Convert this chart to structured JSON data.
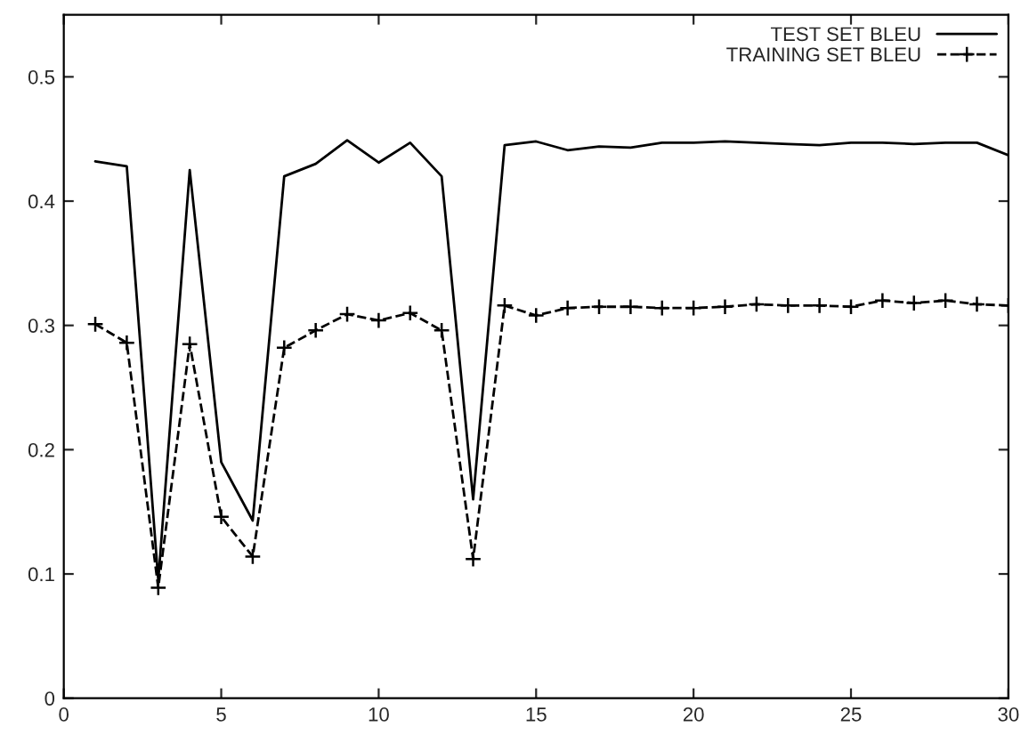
{
  "chart_data": {
    "type": "line",
    "x": [
      1,
      2,
      3,
      4,
      5,
      6,
      7,
      8,
      9,
      10,
      11,
      12,
      13,
      14,
      15,
      16,
      17,
      18,
      19,
      20,
      21,
      22,
      23,
      24,
      25,
      26,
      27,
      28,
      29,
      30
    ],
    "series": [
      {
        "name": "TEST SET BLEU",
        "color": "#000000",
        "marker": "none",
        "line_style": "solid",
        "values": [
          0.432,
          0.428,
          0.095,
          0.425,
          0.19,
          0.143,
          0.42,
          0.43,
          0.449,
          0.431,
          0.447,
          0.42,
          0.16,
          0.445,
          0.448,
          0.441,
          0.444,
          0.443,
          0.447,
          0.447,
          0.448,
          0.447,
          0.446,
          0.445,
          0.447,
          0.447,
          0.446,
          0.447,
          0.447,
          0.437
        ]
      },
      {
        "name": "TRAINING SET BLEU",
        "color": "#000000",
        "marker": "cross",
        "line_style": "dashed",
        "values": [
          0.301,
          0.286,
          0.089,
          0.285,
          0.146,
          0.114,
          0.282,
          0.296,
          0.309,
          0.304,
          0.31,
          0.296,
          0.112,
          0.316,
          0.308,
          0.314,
          0.315,
          0.315,
          0.314,
          0.314,
          0.315,
          0.317,
          0.316,
          0.316,
          0.315,
          0.32,
          0.318,
          0.32,
          0.317,
          0.316
        ]
      }
    ],
    "xlim": [
      0,
      30
    ],
    "xticks": [
      0,
      5,
      10,
      15,
      20,
      25,
      30
    ],
    "ylim": [
      0,
      0.55
    ],
    "yticks": [
      0,
      0.1,
      0.2,
      0.3,
      0.4,
      0.5
    ],
    "grid": false,
    "legend": "top right"
  }
}
